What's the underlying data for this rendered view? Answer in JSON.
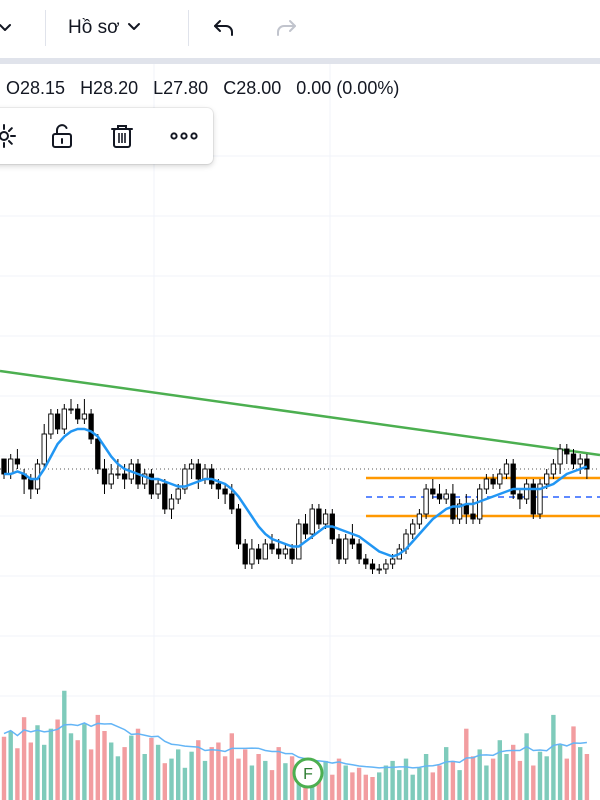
{
  "toolbar": {
    "profile_label": "Hồ sơ",
    "icons": [
      "chevron-down-icon",
      "undo-icon",
      "redo-icon"
    ]
  },
  "legend": {
    "open": "O28.15",
    "high": "H28.20",
    "low": "L27.80",
    "close": "C28.00",
    "change": "0.00 (0.00%)"
  },
  "floating_toolbar": {
    "icons": [
      "settings-icon",
      "unlock-icon",
      "trash-icon",
      "more-icon"
    ]
  },
  "colors": {
    "up": "#26a69a",
    "down": "#ef5350",
    "candle_outline": "#000000",
    "ma_line": "#2196f3",
    "trend_line": "#4caf50",
    "range_lines": "#ff9800",
    "range_mid": "#2962ff"
  },
  "chart_data": {
    "type": "candlestick",
    "series": [
      {
        "name": "price",
        "candles": [
          [
            28.9,
            28.9,
            28.5,
            28.6
          ],
          [
            28.6,
            29.0,
            28.5,
            28.9
          ],
          [
            28.9,
            29.1,
            28.7,
            28.8
          ],
          [
            28.6,
            28.7,
            28.2,
            28.5
          ],
          [
            28.5,
            28.6,
            28.1,
            28.3
          ],
          [
            28.3,
            28.9,
            28.2,
            28.8
          ],
          [
            28.8,
            29.6,
            28.7,
            29.4
          ],
          [
            29.4,
            29.9,
            29.3,
            29.8
          ],
          [
            29.8,
            29.9,
            29.4,
            29.5
          ],
          [
            29.5,
            30.0,
            29.4,
            29.9
          ],
          [
            29.9,
            30.1,
            29.8,
            29.9
          ],
          [
            29.9,
            30.0,
            29.6,
            29.7
          ],
          [
            29.7,
            30.1,
            29.6,
            29.8
          ],
          [
            29.8,
            29.9,
            29.2,
            29.3
          ],
          [
            29.3,
            29.4,
            28.6,
            28.7
          ],
          [
            28.7,
            28.9,
            28.2,
            28.4
          ],
          [
            28.4,
            28.8,
            28.3,
            28.6
          ],
          [
            28.6,
            28.9,
            28.5,
            28.6
          ],
          [
            28.6,
            28.8,
            28.3,
            28.5
          ],
          [
            28.5,
            28.9,
            28.4,
            28.8
          ],
          [
            28.8,
            28.9,
            28.3,
            28.4
          ],
          [
            28.4,
            28.7,
            28.3,
            28.6
          ],
          [
            28.6,
            28.7,
            28.1,
            28.2
          ],
          [
            28.2,
            28.5,
            28.1,
            28.4
          ],
          [
            28.4,
            28.5,
            27.8,
            27.9
          ],
          [
            27.9,
            28.2,
            27.7,
            28.1
          ],
          [
            28.1,
            28.4,
            28.0,
            28.3
          ],
          [
            28.3,
            28.8,
            28.2,
            28.7
          ],
          [
            28.7,
            28.9,
            28.5,
            28.8
          ],
          [
            28.8,
            28.9,
            28.3,
            28.5
          ],
          [
            28.5,
            28.8,
            28.4,
            28.7
          ],
          [
            28.7,
            28.8,
            28.3,
            28.4
          ],
          [
            28.4,
            28.5,
            28.1,
            28.3
          ],
          [
            28.3,
            28.4,
            28.0,
            28.2
          ],
          [
            28.2,
            28.4,
            27.8,
            27.9
          ],
          [
            27.9,
            28.0,
            27.1,
            27.2
          ],
          [
            27.2,
            27.3,
            26.7,
            26.8
          ],
          [
            26.8,
            27.3,
            26.7,
            27.1
          ],
          [
            27.1,
            27.2,
            26.8,
            26.9
          ],
          [
            26.9,
            27.3,
            26.9,
            27.2
          ],
          [
            27.2,
            27.4,
            27.0,
            27.1
          ],
          [
            27.1,
            27.3,
            26.9,
            27.0
          ],
          [
            27.0,
            27.2,
            26.9,
            27.1
          ],
          [
            27.1,
            27.2,
            26.8,
            26.9
          ],
          [
            26.9,
            27.7,
            26.9,
            27.6
          ],
          [
            27.6,
            27.8,
            27.3,
            27.4
          ],
          [
            27.4,
            28.0,
            27.3,
            27.9
          ],
          [
            27.9,
            28.0,
            27.5,
            27.6
          ],
          [
            27.6,
            27.9,
            27.5,
            27.8
          ],
          [
            27.8,
            27.9,
            27.2,
            27.3
          ],
          [
            27.3,
            27.4,
            26.8,
            26.9
          ],
          [
            26.9,
            27.4,
            26.8,
            27.3
          ],
          [
            27.3,
            27.6,
            27.1,
            27.2
          ],
          [
            27.2,
            27.3,
            26.8,
            26.9
          ],
          [
            26.9,
            27.0,
            26.7,
            26.8
          ],
          [
            26.8,
            26.9,
            26.6,
            26.7
          ],
          [
            26.7,
            26.8,
            26.6,
            26.7
          ],
          [
            26.7,
            26.9,
            26.6,
            26.8
          ],
          [
            26.8,
            27.0,
            26.7,
            26.9
          ],
          [
            26.9,
            27.2,
            26.9,
            27.1
          ],
          [
            27.1,
            27.5,
            27.0,
            27.4
          ],
          [
            27.4,
            27.7,
            27.3,
            27.6
          ],
          [
            27.6,
            27.9,
            27.5,
            27.8
          ],
          [
            27.8,
            28.4,
            27.7,
            28.3
          ],
          [
            28.3,
            28.5,
            28.1,
            28.2
          ],
          [
            28.2,
            28.4,
            28.0,
            28.1
          ],
          [
            28.1,
            28.3,
            28.0,
            28.2
          ],
          [
            28.2,
            28.4,
            27.6,
            27.7
          ],
          [
            27.7,
            28.1,
            27.6,
            28.0
          ],
          [
            28.0,
            28.2,
            27.6,
            27.8
          ],
          [
            27.8,
            28.1,
            27.6,
            27.7
          ],
          [
            27.7,
            28.4,
            27.6,
            28.3
          ],
          [
            28.3,
            28.6,
            28.2,
            28.5
          ],
          [
            28.5,
            28.6,
            28.3,
            28.4
          ],
          [
            28.4,
            28.7,
            28.3,
            28.6
          ],
          [
            28.6,
            28.9,
            28.5,
            28.8
          ],
          [
            28.8,
            28.9,
            28.1,
            28.2
          ],
          [
            28.2,
            28.3,
            27.9,
            28.1
          ],
          [
            28.1,
            28.5,
            28.0,
            28.4
          ],
          [
            28.4,
            28.5,
            27.7,
            27.8
          ],
          [
            27.8,
            28.5,
            27.7,
            28.4
          ],
          [
            28.4,
            28.7,
            28.3,
            28.6
          ],
          [
            28.6,
            28.9,
            28.5,
            28.8
          ],
          [
            28.8,
            29.2,
            28.6,
            29.1
          ],
          [
            29.1,
            29.2,
            28.8,
            29.0
          ],
          [
            29.0,
            29.1,
            28.7,
            28.8
          ],
          [
            28.8,
            29.0,
            28.6,
            28.9
          ],
          [
            28.9,
            29.0,
            28.5,
            28.7
          ]
        ]
      },
      {
        "name": "moving-average",
        "values": [
          28.6,
          28.6,
          28.65,
          28.6,
          28.5,
          28.5,
          28.7,
          28.95,
          29.2,
          29.35,
          29.45,
          29.5,
          29.5,
          29.45,
          29.35,
          29.15,
          28.95,
          28.8,
          28.7,
          28.65,
          28.6,
          28.55,
          28.5,
          28.5,
          28.45,
          28.4,
          28.35,
          28.35,
          28.4,
          28.45,
          28.5,
          28.5,
          28.45,
          28.4,
          28.3,
          28.15,
          27.95,
          27.75,
          27.55,
          27.4,
          27.3,
          27.25,
          27.2,
          27.15,
          27.15,
          27.25,
          27.35,
          27.45,
          27.55,
          27.55,
          27.5,
          27.45,
          27.4,
          27.35,
          27.25,
          27.15,
          27.05,
          27.0,
          26.95,
          27.0,
          27.1,
          27.25,
          27.4,
          27.55,
          27.7,
          27.8,
          27.9,
          27.95,
          27.95,
          28.0,
          28.0,
          28.05,
          28.1,
          28.15,
          28.2,
          28.25,
          28.3,
          28.3,
          28.3,
          28.3,
          28.3,
          28.35,
          28.4,
          28.5,
          28.6,
          28.65,
          28.7,
          28.75
        ]
      },
      {
        "name": "volume",
        "values": [
          55,
          60,
          45,
          72,
          50,
          65,
          48,
          62,
          70,
          95,
          58,
          52,
          66,
          44,
          74,
          60,
          50,
          38,
          46,
          56,
          62,
          40,
          54,
          48,
          32,
          36,
          44,
          28,
          42,
          52,
          34,
          46,
          50,
          38,
          58,
          36,
          44,
          30,
          40,
          34,
          26,
          46,
          32,
          38,
          28,
          24,
          30,
          26,
          34,
          22,
          36,
          30,
          24,
          28,
          22,
          20,
          24,
          30,
          34,
          26,
          36,
          22,
          28,
          40,
          24,
          30,
          46,
          34,
          26,
          62,
          38,
          44,
          30,
          36,
          52,
          40,
          48,
          34,
          58,
          30,
          42,
          38,
          74,
          48,
          36,
          64,
          46,
          40
        ]
      }
    ],
    "annotations": [
      "trend-line",
      "range-box"
    ],
    "markers": [
      "F"
    ]
  }
}
